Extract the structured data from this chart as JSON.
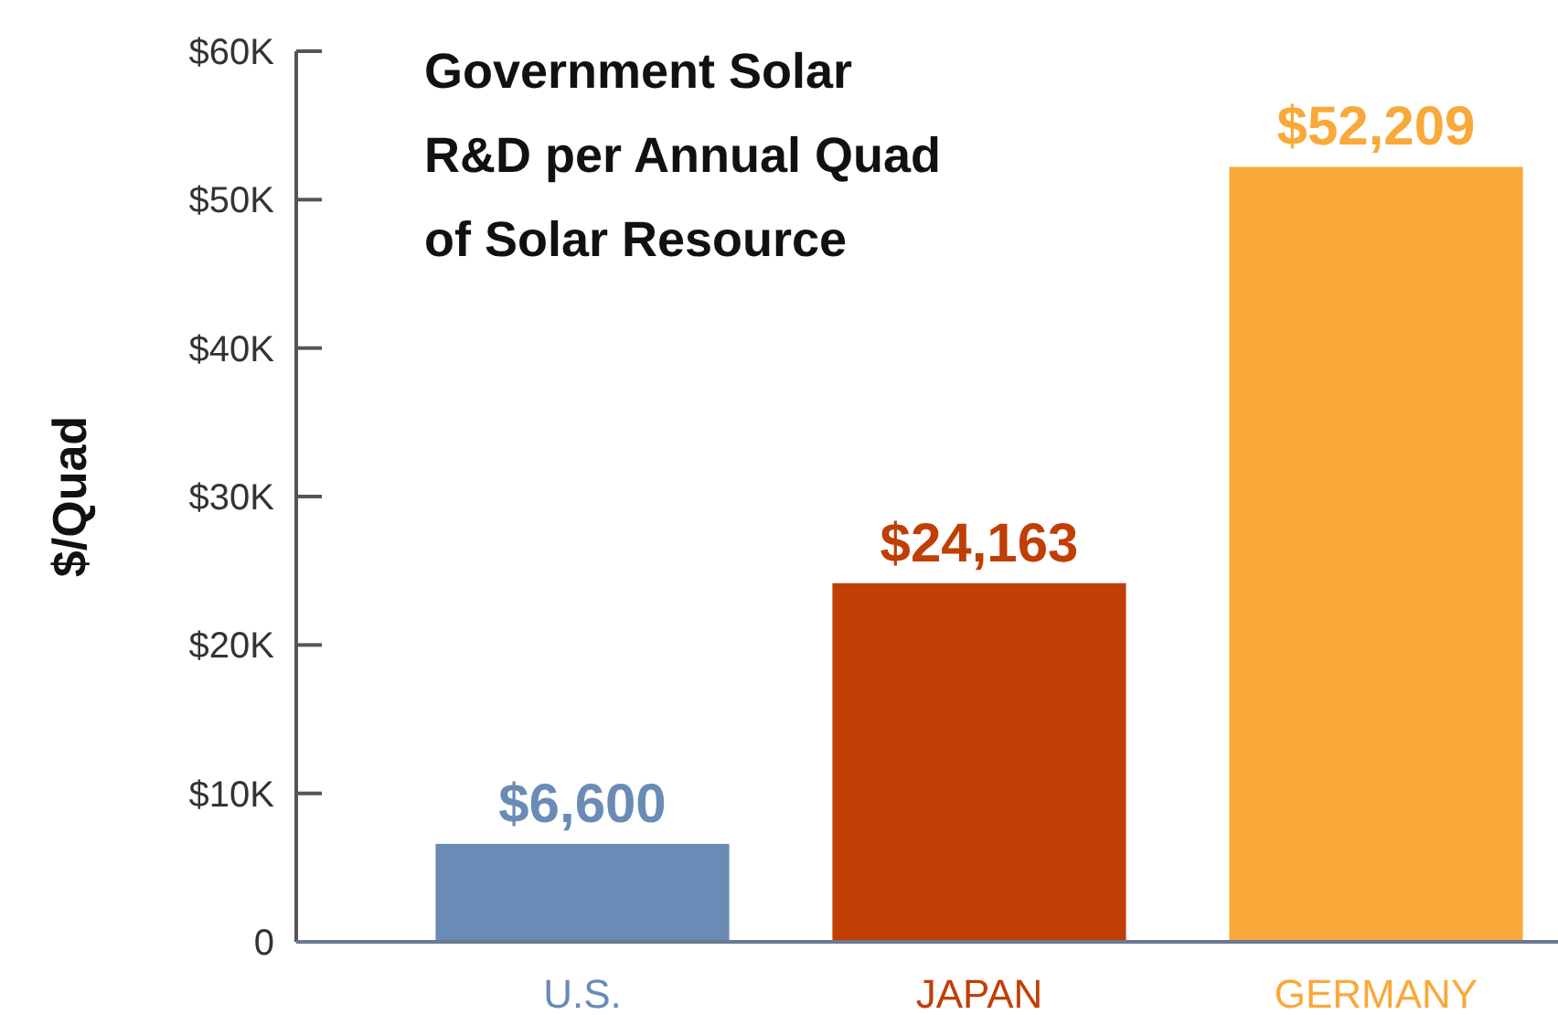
{
  "chart_data": {
    "type": "bar",
    "title": "Government Solar R&D per Annual Quad of Solar Resource",
    "ylabel": "$/Quad",
    "categories": [
      "U.S.",
      "JAPAN",
      "GERMANY"
    ],
    "values": [
      6600,
      24163,
      52209
    ],
    "colors": [
      "#6a8bb5",
      "#c13e05",
      "#f9a93a"
    ],
    "value_labels": [
      "$6,600",
      "$24,163",
      "$52,209"
    ],
    "ylim": [
      0,
      60000
    ],
    "yticks": [
      0,
      {
        "value": 10000,
        "label": "$10K"
      },
      {
        "value": 20000,
        "label": "$20K"
      },
      {
        "value": 30000,
        "label": "$30K"
      },
      {
        "value": 40000,
        "label": "$40K"
      },
      {
        "value": 50000,
        "label": "$50K"
      },
      {
        "value": 60000,
        "label": "$60K"
      }
    ],
    "grid": false
  }
}
